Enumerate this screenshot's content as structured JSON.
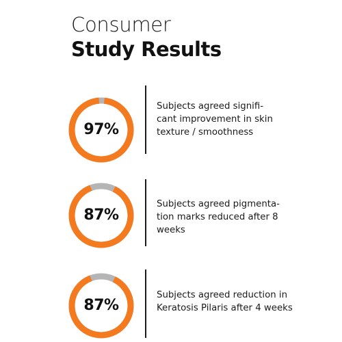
{
  "title": {
    "line1": "Consumer",
    "line2": "Study Results"
  },
  "colors": {
    "accent": "#f47a20",
    "track": "#b5b5b5",
    "text": "#111111"
  },
  "stats": [
    {
      "value_label": "97%",
      "percent": 97,
      "description_lines": [
        "Subjects agreed signifi-",
        "cant improvement in skin",
        "texture / smoothness"
      ]
    },
    {
      "value_label": "87%",
      "percent": 87,
      "description_lines": [
        "Subjects agreed pigmenta-",
        "tion marks reduced after 8",
        "weeks"
      ]
    },
    {
      "value_label": "87%",
      "percent": 87,
      "description_lines": [
        "Subjects agreed reduction in",
        "Keratosis Pilaris after 4 weeks"
      ]
    }
  ]
}
